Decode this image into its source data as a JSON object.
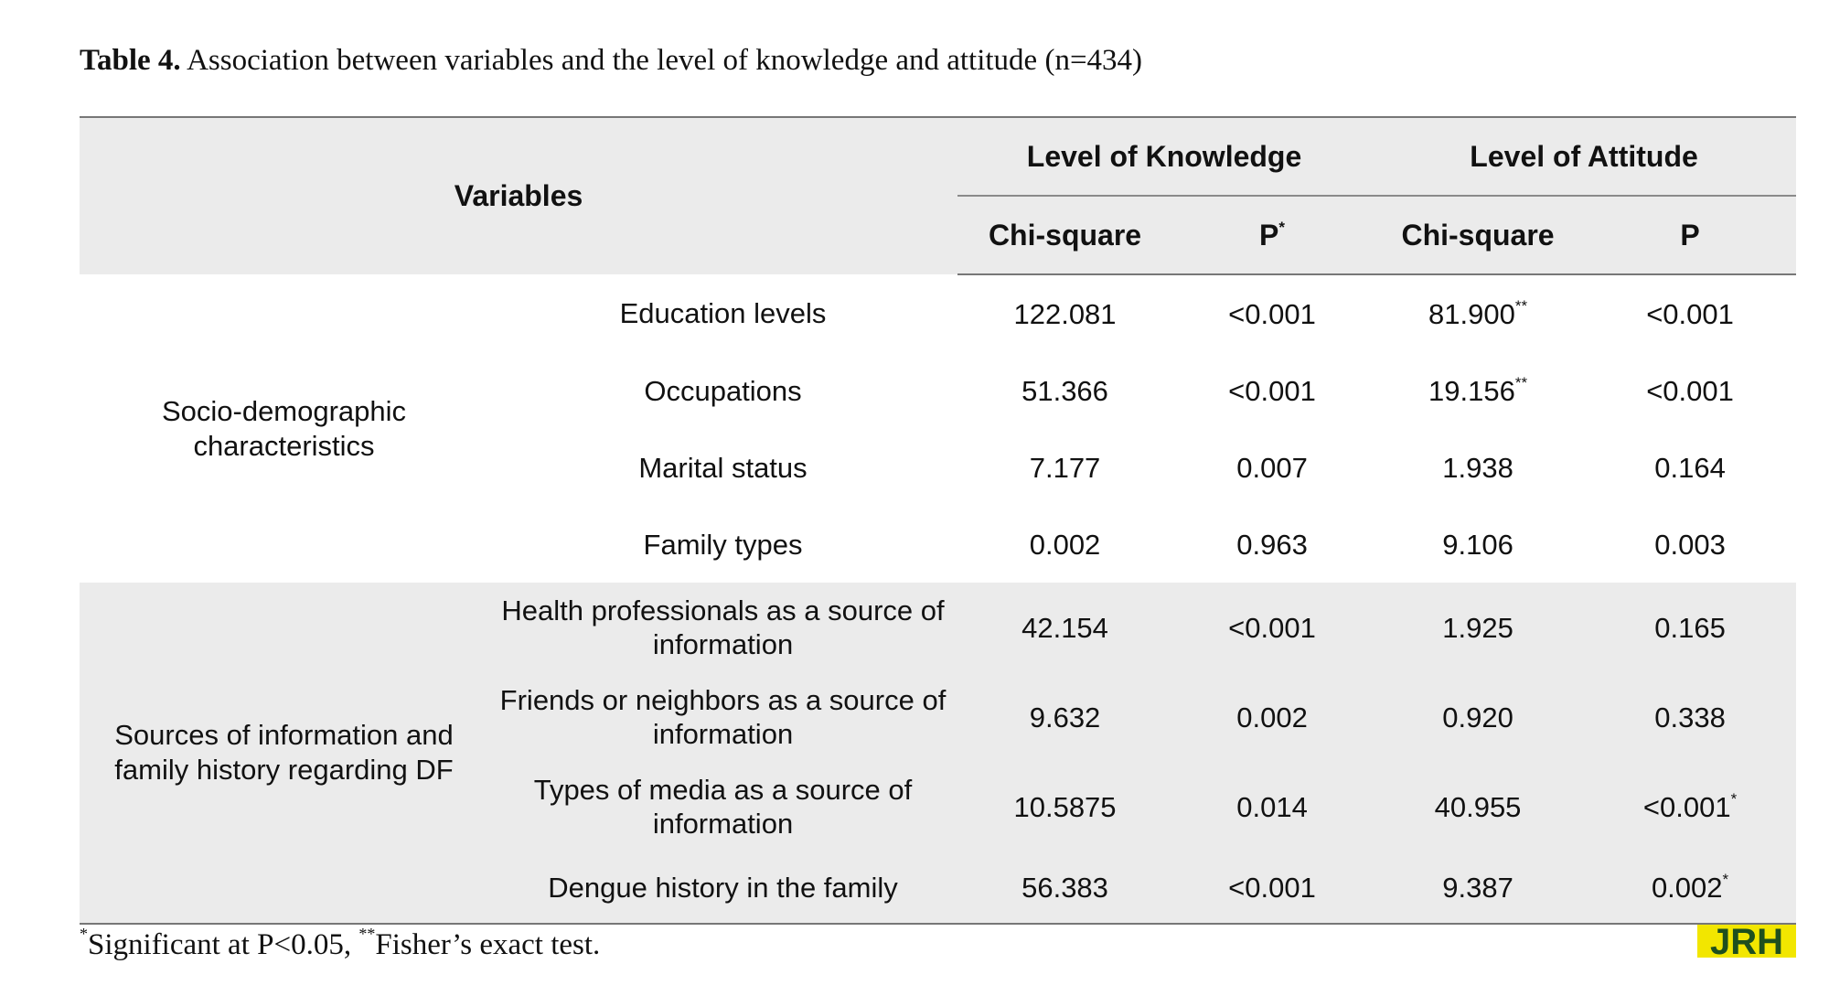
{
  "caption": {
    "label": "Table 4.",
    "text": "Association between variables and the level of knowledge and attitude (n=434)"
  },
  "header": {
    "variables": "Variables",
    "knowledge": "Level of Knowledge",
    "attitude": "Level of Attitude",
    "chi_square_1": "Chi-square",
    "p_1": "P",
    "p_1_mark": "*",
    "chi_square_2": "Chi-square",
    "p_2": "P"
  },
  "groups": [
    {
      "label": "Socio-demographic characteristics",
      "rows": [
        {
          "variable": "Education levels",
          "k_chi": "122.081",
          "k_chi_mark": "",
          "k_p": "<0.001",
          "k_p_mark": "",
          "a_chi": "81.900",
          "a_chi_mark": "**",
          "a_p": "<0.001",
          "a_p_mark": ""
        },
        {
          "variable": "Occupations",
          "k_chi": "51.366",
          "k_chi_mark": "",
          "k_p": "<0.001",
          "k_p_mark": "",
          "a_chi": "19.156",
          "a_chi_mark": "**",
          "a_p": "<0.001",
          "a_p_mark": ""
        },
        {
          "variable": "Marital status",
          "k_chi": "7.177",
          "k_chi_mark": "",
          "k_p": "0.007",
          "k_p_mark": "",
          "a_chi": "1.938",
          "a_chi_mark": "",
          "a_p": "0.164",
          "a_p_mark": ""
        },
        {
          "variable": "Family types",
          "k_chi": "0.002",
          "k_chi_mark": "",
          "k_p": "0.963",
          "k_p_mark": "",
          "a_chi": "9.106",
          "a_chi_mark": "",
          "a_p": "0.003",
          "a_p_mark": ""
        }
      ]
    },
    {
      "label": "Sources of information and family history regarding DF",
      "rows": [
        {
          "variable": "Health professionals as a source of information",
          "k_chi": "42.154",
          "k_chi_mark": "",
          "k_p": "<0.001",
          "k_p_mark": "",
          "a_chi": "1.925",
          "a_chi_mark": "",
          "a_p": "0.165",
          "a_p_mark": ""
        },
        {
          "variable": "Friends or neighbors as a source of information",
          "k_chi": "9.632",
          "k_chi_mark": "",
          "k_p": "0.002",
          "k_p_mark": "",
          "a_chi": "0.920",
          "a_chi_mark": "",
          "a_p": "0.338",
          "a_p_mark": ""
        },
        {
          "variable": "Types of media as a source of information",
          "k_chi": "10.5875",
          "k_chi_mark": "",
          "k_p": "0.014",
          "k_p_mark": "",
          "a_chi": "40.955",
          "a_chi_mark": "",
          "a_p": "<0.001",
          "a_p_mark": "*"
        },
        {
          "variable": "Dengue history in the family",
          "k_chi": "56.383",
          "k_chi_mark": "",
          "k_p": "<0.001",
          "k_p_mark": "",
          "a_chi": "9.387",
          "a_chi_mark": "",
          "a_p": "0.002",
          "a_p_mark": "*"
        }
      ]
    }
  ],
  "footnote": {
    "mark_1": "*",
    "text_1": "Significant at P<0.05, ",
    "mark_2": "**",
    "text_2": "Fisher’s exact test."
  },
  "logo": {
    "text": "JRH",
    "colors": {
      "yellow": "#f2e600",
      "green": "#1e4f1e"
    }
  }
}
